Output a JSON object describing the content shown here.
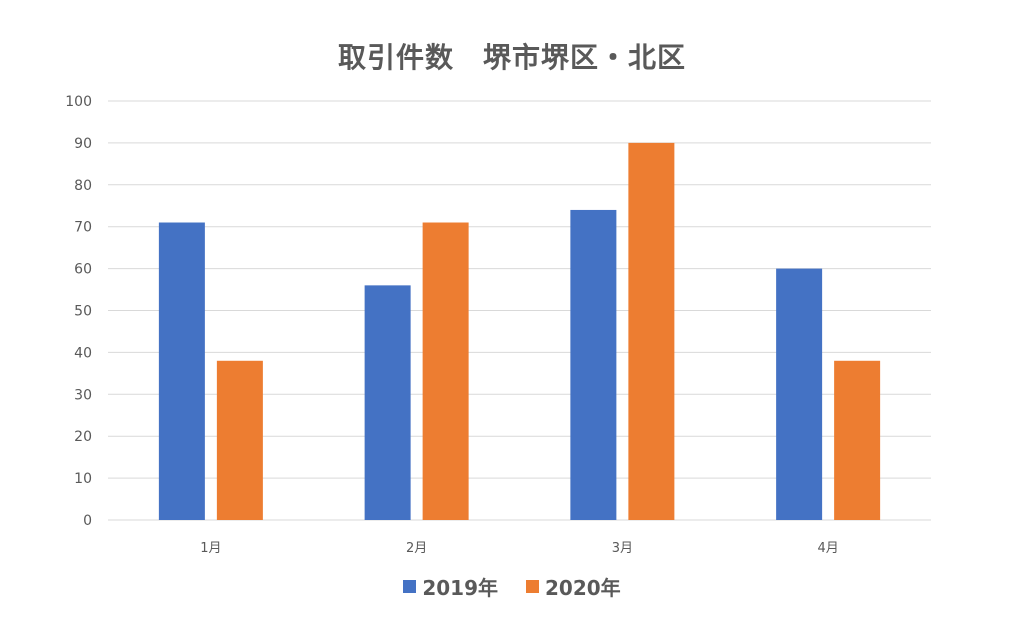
{
  "chart_data": {
    "type": "bar",
    "title": "取引件数　堺市堺区・北区",
    "categories": [
      "1月",
      "2月",
      "3月",
      "4月"
    ],
    "series": [
      {
        "name": "2019年",
        "color": "#4472C4",
        "values": [
          71,
          56,
          74,
          60
        ]
      },
      {
        "name": "2020年",
        "color": "#ED7D31",
        "values": [
          38,
          71,
          90,
          38
        ]
      }
    ],
    "ylim": [
      0,
      100
    ],
    "yticks": [
      0,
      10,
      20,
      30,
      40,
      50,
      60,
      70,
      80,
      90,
      100
    ],
    "grid": true,
    "legend_position": "bottom",
    "grid_color": "#D9D9D9"
  }
}
